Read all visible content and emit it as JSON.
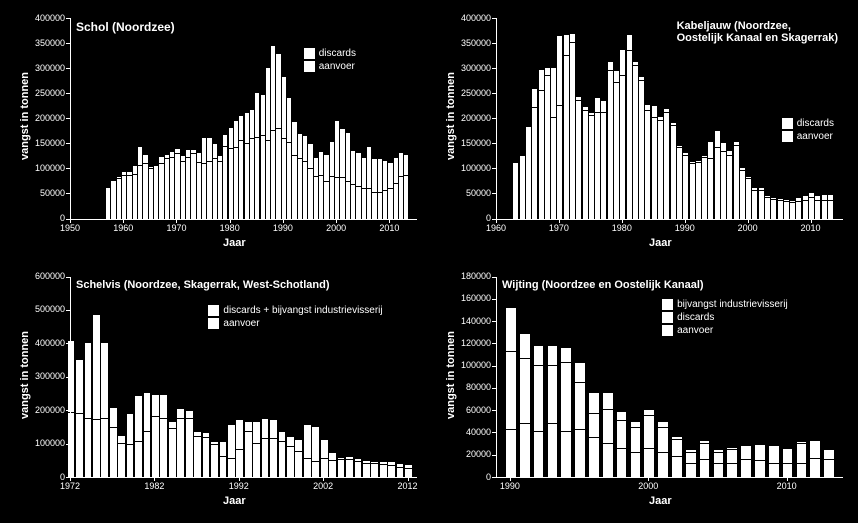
{
  "background_color": "#000000",
  "bar_color": "#ffffff",
  "text_color": "#ffffff",
  "axis_color": "#ffffff",
  "panels": {
    "schol": {
      "title": "Schol (Noordzee)",
      "title_fontsize": 12,
      "ylabel": "vangst in tonnen",
      "xlabel": "Jaar",
      "label_fontsize": 11,
      "tick_fontsize": 9,
      "ylim": [
        0,
        400000
      ],
      "ytick_step": 50000,
      "xlim": [
        1950,
        2015
      ],
      "xticks": [
        1950,
        1960,
        1970,
        1980,
        1990,
        2000,
        2010
      ],
      "legend": {
        "items": [
          {
            "label": "discards",
            "fill": "#ffffff"
          },
          {
            "label": "aanvoer",
            "fill": "#ffffff"
          }
        ],
        "fontsize": 10
      },
      "years": [
        1957,
        1958,
        1959,
        1960,
        1961,
        1962,
        1963,
        1964,
        1965,
        1966,
        1967,
        1968,
        1969,
        1970,
        1971,
        1972,
        1973,
        1974,
        1975,
        1976,
        1977,
        1978,
        1979,
        1980,
        1981,
        1982,
        1983,
        1984,
        1985,
        1986,
        1987,
        1988,
        1989,
        1990,
        1991,
        1992,
        1993,
        1994,
        1995,
        1996,
        1997,
        1998,
        1999,
        2000,
        2001,
        2002,
        2003,
        2004,
        2005,
        2006,
        2007,
        2008,
        2009,
        2010,
        2011,
        2012,
        2013
      ],
      "aanvoer": [
        60000,
        72000,
        78000,
        85000,
        85000,
        87000,
        105000,
        108000,
        98000,
        105000,
        108000,
        118000,
        120000,
        128000,
        112000,
        120000,
        128000,
        110000,
        108000,
        112000,
        118000,
        112000,
        142000,
        138000,
        140000,
        155000,
        148000,
        158000,
        160000,
        165000,
        155000,
        175000,
        178000,
        158000,
        150000,
        125000,
        118000,
        112000,
        98000,
        82000,
        85000,
        72000,
        82000,
        80000,
        80000,
        72000,
        67000,
        62000,
        58000,
        58000,
        50000,
        50000,
        55000,
        58000,
        68000,
        82000,
        85000
      ],
      "discards": [
        2000,
        3000,
        5000,
        8000,
        8000,
        18000,
        38000,
        18000,
        5000,
        2000,
        14000,
        8000,
        12000,
        10000,
        12000,
        16000,
        8000,
        20000,
        52000,
        48000,
        30000,
        12000,
        25000,
        42000,
        55000,
        50000,
        62000,
        58000,
        90000,
        82000,
        145000,
        170000,
        150000,
        125000,
        90000,
        68000,
        50000,
        52000,
        50000,
        38000,
        48000,
        55000,
        70000,
        115000,
        98000,
        98000,
        68000,
        68000,
        62000,
        85000,
        68000,
        68000,
        60000,
        52000,
        52000,
        48000,
        42000
      ],
      "bar_width": 0.8
    },
    "kabeljauw": {
      "title": "Kabeljauw (Noordzee,\nOostelijk Kanaal en Skagerrak)",
      "title_fontsize": 11,
      "ylabel": "vangst in tonnen",
      "xlabel": "Jaar",
      "label_fontsize": 11,
      "tick_fontsize": 9,
      "ylim": [
        0,
        400000
      ],
      "ytick_step": 50000,
      "xlim": [
        1960,
        2015
      ],
      "xticks": [
        1960,
        1970,
        1980,
        1990,
        2000,
        2010
      ],
      "legend": {
        "items": [
          {
            "label": "discards",
            "fill": "#ffffff"
          },
          {
            "label": "aanvoer",
            "fill": "#ffffff"
          }
        ],
        "fontsize": 10
      },
      "years": [
        1963,
        1964,
        1965,
        1966,
        1967,
        1968,
        1969,
        1970,
        1971,
        1972,
        1973,
        1974,
        1975,
        1976,
        1977,
        1978,
        1979,
        1980,
        1981,
        1982,
        1983,
        1984,
        1985,
        1986,
        1987,
        1988,
        1989,
        1990,
        1991,
        1992,
        1993,
        1994,
        1995,
        1996,
        1997,
        1998,
        1999,
        2000,
        2001,
        2002,
        2003,
        2004,
        2005,
        2006,
        2007,
        2008,
        2009,
        2010,
        2011,
        2012,
        2013
      ],
      "aanvoer": [
        110000,
        125000,
        180000,
        220000,
        255000,
        285000,
        200000,
        225000,
        325000,
        350000,
        235000,
        215000,
        205000,
        210000,
        210000,
        295000,
        270000,
        285000,
        335000,
        305000,
        275000,
        215000,
        200000,
        195000,
        210000,
        185000,
        140000,
        125000,
        108000,
        110000,
        120000,
        118000,
        140000,
        132000,
        125000,
        145000,
        95000,
        78000,
        55000,
        55000,
        40000,
        37000,
        35000,
        32000,
        30000,
        32000,
        35000,
        40000,
        35000,
        35000,
        35000
      ],
      "discards": [
        2000,
        2000,
        3000,
        38000,
        42000,
        15000,
        100000,
        140000,
        42000,
        18000,
        8000,
        8000,
        5000,
        30000,
        25000,
        18000,
        25000,
        52000,
        32000,
        8000,
        8000,
        12000,
        25000,
        8000,
        8000,
        5000,
        4000,
        5000,
        4000,
        4000,
        4000,
        35000,
        35000,
        18000,
        10000,
        8000,
        5000,
        5000,
        5000,
        5000,
        4000,
        4000,
        4000,
        4000,
        5000,
        8000,
        10000,
        10000,
        10000,
        12000,
        12000
      ],
      "bar_width": 0.8
    },
    "schelvis": {
      "title": "Schelvis (Noordzee, Skagerrak, West-Schotland)",
      "title_fontsize": 11,
      "ylabel": "vangst in tonnen",
      "xlabel": "Jaar",
      "label_fontsize": 11,
      "tick_fontsize": 9,
      "ylim": [
        0,
        600000
      ],
      "ytick_step": 100000,
      "xlim": [
        1972,
        2013
      ],
      "xticks": [
        1972,
        1982,
        1992,
        2002,
        2012
      ],
      "legend": {
        "items": [
          {
            "label": "discards + bijvangst industrievisserij",
            "fill": "#ffffff"
          },
          {
            "label": "aanvoer",
            "fill": "#ffffff"
          }
        ],
        "fontsize": 10
      },
      "years": [
        1972,
        1973,
        1974,
        1975,
        1976,
        1977,
        1978,
        1979,
        1980,
        1981,
        1982,
        1983,
        1984,
        1985,
        1986,
        1987,
        1988,
        1989,
        1990,
        1991,
        1992,
        1993,
        1994,
        1995,
        1996,
        1997,
        1998,
        1999,
        2000,
        2001,
        2002,
        2003,
        2004,
        2005,
        2006,
        2007,
        2008,
        2009,
        2010,
        2011,
        2012
      ],
      "aanvoer": [
        192000,
        190000,
        175000,
        170000,
        175000,
        148000,
        100000,
        95000,
        105000,
        135000,
        180000,
        175000,
        145000,
        175000,
        175000,
        120000,
        118000,
        95000,
        60000,
        55000,
        80000,
        135000,
        100000,
        115000,
        115000,
        105000,
        90000,
        75000,
        55000,
        45000,
        55000,
        48000,
        50000,
        52000,
        45000,
        40000,
        38000,
        35000,
        32000,
        28000,
        25000
      ],
      "discards": [
        215000,
        160000,
        225000,
        315000,
        225000,
        60000,
        22000,
        95000,
        138000,
        115000,
        65000,
        70000,
        20000,
        30000,
        22000,
        15000,
        15000,
        10000,
        45000,
        100000,
        90000,
        30000,
        65000,
        60000,
        55000,
        30000,
        30000,
        35000,
        100000,
        105000,
        55000,
        25000,
        8000,
        8000,
        8000,
        8000,
        8000,
        10000,
        12000,
        12000,
        10000
      ],
      "bar_width": 0.8
    },
    "wijting": {
      "title": "Wijting (Noordzee en Oostelijk Kanaal)",
      "title_fontsize": 11,
      "ylabel": "vangst in tonnen",
      "xlabel": "Jaar",
      "label_fontsize": 11,
      "tick_fontsize": 9,
      "ylim": [
        0,
        180000
      ],
      "ytick_step": 20000,
      "xlim": [
        1989,
        2014
      ],
      "xticks": [
        1990,
        2000,
        2010
      ],
      "legend": {
        "items": [
          {
            "label": "bijvangst industrievisserij",
            "fill": "#ffffff"
          },
          {
            "label": "discards",
            "fill": "#ffffff"
          },
          {
            "label": "aanvoer",
            "fill": "#ffffff"
          }
        ],
        "fontsize": 10
      },
      "years": [
        1990,
        1991,
        1992,
        1993,
        1994,
        1995,
        1996,
        1997,
        1998,
        1999,
        2000,
        2001,
        2002,
        2003,
        2004,
        2005,
        2006,
        2007,
        2008,
        2009,
        2010,
        2011,
        2012,
        2013
      ],
      "aanvoer": [
        42000,
        48000,
        40000,
        48000,
        40000,
        42000,
        35000,
        30000,
        25000,
        22000,
        25000,
        22000,
        18000,
        12000,
        15000,
        12000,
        12000,
        15000,
        14000,
        12000,
        12000,
        12000,
        16000,
        15000
      ],
      "discards": [
        70000,
        58000,
        60000,
        52000,
        62000,
        42000,
        22000,
        30000,
        25000,
        22000,
        30000,
        22000,
        15000,
        10000,
        15000,
        10000,
        12000,
        12000,
        14000,
        15000,
        12000,
        18000,
        15000,
        8000
      ],
      "bijvangst": [
        40000,
        22000,
        18000,
        18000,
        14000,
        18000,
        18000,
        15000,
        8000,
        5000,
        5000,
        5000,
        3000,
        2000,
        2000,
        2000,
        2000,
        1000,
        1000,
        1000,
        1000,
        1000,
        1000,
        1000
      ],
      "bar_width": 0.7
    }
  }
}
